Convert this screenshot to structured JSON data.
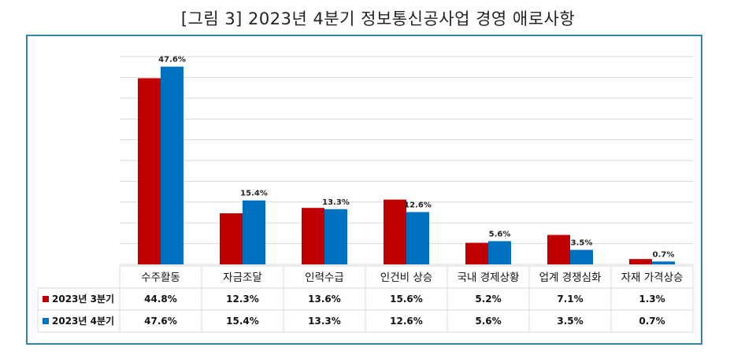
{
  "title": "[그림 3] 2023년 4분기 정보통신공사업 경영 애로사항",
  "chart_data": {
    "type": "bar",
    "categories": [
      "수주활동",
      "자금조달",
      "인력수급",
      "인건비 상승",
      "국내 경제상황",
      "업계 경쟁심화",
      "자재 가격상승"
    ],
    "series": [
      {
        "name": "2023년 3분기",
        "color": "#c00000",
        "values": [
          44.8,
          12.3,
          13.6,
          15.6,
          5.2,
          7.1,
          1.3
        ],
        "labels": [
          "44.8%",
          "12.3%",
          "13.6%",
          "15.6%",
          "5.2%",
          "7.1%",
          "1.3%"
        ]
      },
      {
        "name": "2023년 4분기",
        "color": "#0070c0",
        "values": [
          47.6,
          15.4,
          13.3,
          12.6,
          5.6,
          3.5,
          0.7
        ],
        "labels": [
          "47.6%",
          "15.4%",
          "13.3%",
          "12.6%",
          "5.6%",
          "3.5%",
          "0.7%"
        ]
      }
    ],
    "data_labels_series": 1,
    "ylim": [
      0,
      50
    ],
    "grid": true,
    "legend": "data table",
    "border_color": "#2e86ab"
  }
}
